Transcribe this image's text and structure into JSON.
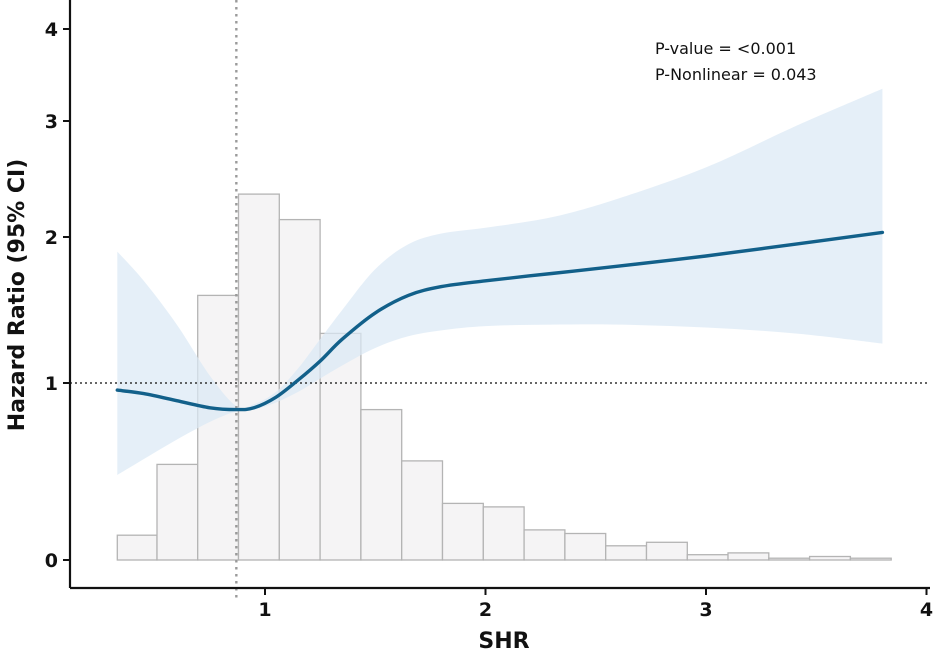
{
  "chart_data": {
    "type": "line",
    "title": "",
    "xlabel": "SHR",
    "ylabel": "Hazard Ratio (95% CI)",
    "xlim": [
      0.25,
      4.0
    ],
    "x_ticks": [
      "1",
      "2",
      "3",
      "4"
    ],
    "y_ticks": [
      "0",
      "1",
      "2",
      "3",
      "4"
    ],
    "y_tick_values": [
      0,
      1,
      2,
      3,
      4
    ],
    "annotations": [
      "P-value = <0.001",
      "P-Nonlinear = 0.043"
    ],
    "reference_line_y": 1,
    "reference_line_x": 0.87,
    "hazard_curve": {
      "x": [
        0.33,
        0.45,
        0.6,
        0.75,
        0.87,
        0.95,
        1.05,
        1.15,
        1.25,
        1.35,
        1.5,
        1.65,
        1.8,
        2.0,
        2.3,
        2.6,
        3.0,
        3.4,
        3.8
      ],
      "hr": [
        0.96,
        0.94,
        0.9,
        0.86,
        0.85,
        0.86,
        0.92,
        1.02,
        1.15,
        1.3,
        1.48,
        1.6,
        1.66,
        1.7,
        1.75,
        1.8,
        1.87,
        1.95,
        2.04
      ],
      "lower": [
        0.48,
        0.57,
        0.68,
        0.78,
        0.84,
        0.85,
        0.89,
        0.95,
        1.03,
        1.12,
        1.24,
        1.32,
        1.36,
        1.39,
        1.4,
        1.4,
        1.38,
        1.34,
        1.27
      ],
      "upper": [
        1.9,
        1.7,
        1.4,
        1.05,
        0.87,
        0.88,
        0.95,
        1.1,
        1.3,
        1.5,
        1.78,
        1.95,
        2.03,
        2.08,
        2.17,
        2.33,
        2.6,
        2.95,
        3.35
      ]
    },
    "histogram": {
      "bin_edges": [
        0.33,
        0.51,
        0.695,
        0.88,
        1.065,
        1.25,
        1.435,
        1.62,
        1.805,
        1.99,
        2.175,
        2.36,
        2.545,
        2.73,
        2.915,
        3.1,
        3.285,
        3.47,
        3.655,
        3.84
      ],
      "display_heights": [
        0.14,
        0.54,
        1.6,
        2.37,
        2.15,
        1.34,
        0.85,
        0.56,
        0.32,
        0.3,
        0.17,
        0.15,
        0.08,
        0.1,
        0.03,
        0.04,
        0.01,
        0.02,
        0.01
      ]
    },
    "colors": {
      "curve": "#12608a",
      "band": "#dbe9f5",
      "bar_fill": "#f5f4f5",
      "bar_stroke": "#b4b4b4",
      "ref_line": "#333333",
      "vline": "#9a9a9a"
    }
  }
}
